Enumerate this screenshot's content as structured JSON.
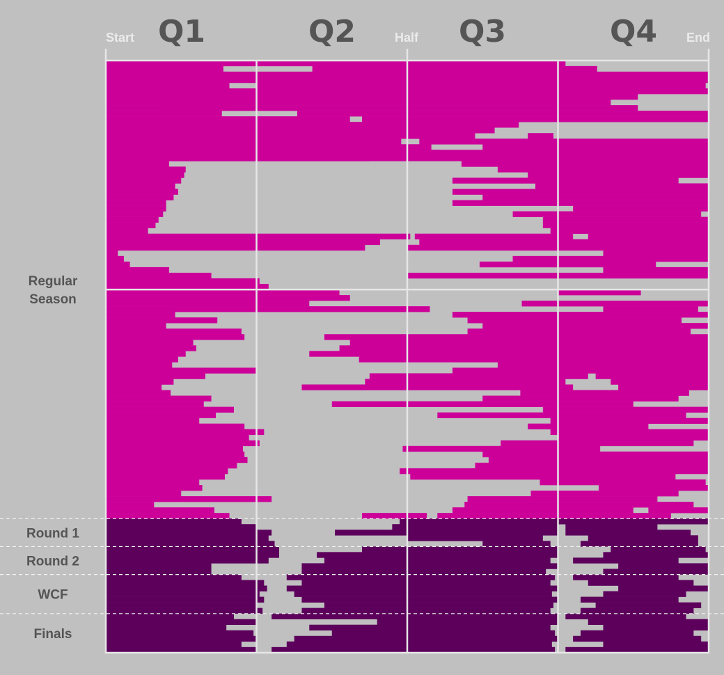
{
  "chart_data": {
    "type": "heatmap",
    "x_axis": {
      "quarter_labels": [
        "Q1",
        "Q2",
        "Q3",
        "Q4"
      ],
      "edge_labels": {
        "start": "Start",
        "half": "Half",
        "end": "End"
      },
      "range": [
        0,
        4
      ]
    },
    "colors": {
      "background": "#c0c0c0",
      "regular_season_bar": "#cc0099",
      "playoff_bar": "#5c005c",
      "grid": "#e6e6e6"
    },
    "sections": [
      {
        "label": "Regular Season",
        "lines": [
          "Regular",
          "Season"
        ],
        "games": 82,
        "color": "#cc0099"
      },
      {
        "label": "Round 1",
        "lines": [
          "Round 1"
        ],
        "games": 5,
        "color": "#5c005c"
      },
      {
        "label": "Round 2",
        "lines": [
          "Round 2"
        ],
        "games": 5,
        "color": "#5c005c"
      },
      {
        "label": "WCF",
        "lines": [
          "WCF"
        ],
        "games": 7,
        "color": "#5c005c"
      },
      {
        "label": "Finals",
        "lines": [
          "Finals"
        ],
        "games": 7,
        "color": "#5c005c"
      }
    ],
    "games": [
      [
        0,
        3.05
      ],
      [
        0,
        0.78,
        1.37,
        3.26
      ],
      [
        0,
        0.82,
        0.15,
        4.0
      ],
      [
        0,
        0.76,
        0.4,
        4.0
      ],
      [
        0,
        0.82,
        1.0,
        3.98
      ],
      [
        0,
        0.76,
        0.4,
        4.0
      ],
      [
        0,
        0.76,
        0.5,
        3.53
      ],
      [
        0,
        0.81,
        0.36,
        3.35
      ],
      [
        0,
        0.74,
        0.38,
        3.53
      ],
      [
        0,
        0.77,
        1.27,
        4.0
      ],
      [
        0,
        1.62,
        1.7,
        4.0
      ],
      [
        0,
        2.74
      ],
      [
        0,
        2.58
      ],
      [
        0,
        2.45,
        2.8,
        2.97
      ],
      [
        0,
        1.96,
        2.08,
        4.0
      ],
      [
        0,
        2.16,
        2.5,
        4.0
      ],
      [
        0,
        2.22,
        0.45,
        4.0
      ],
      [
        0,
        1.75,
        0.2,
        4.0
      ],
      [
        0,
        0.42,
        2.36,
        4.0
      ],
      [
        0,
        0.53,
        2.6,
        4.0
      ],
      [
        0,
        0.52,
        2.8,
        4.0
      ],
      [
        0,
        0.5,
        2.3,
        3.8
      ],
      [
        0,
        0.46,
        2.85,
        4.0
      ],
      [
        0,
        0.48,
        2.3,
        4.0
      ],
      [
        0,
        0.45,
        2.5,
        4.0
      ],
      [
        0,
        0.4,
        2.3,
        4.0
      ],
      [
        0,
        0.4,
        3.1,
        4.0
      ],
      [
        0,
        0.38,
        2.7,
        3.95
      ],
      [
        0,
        0.35,
        2.9,
        4.0
      ],
      [
        0,
        0.33,
        2.9,
        4.0
      ],
      [
        0,
        0.28,
        2.95,
        4.0
      ],
      [
        0,
        2.02,
        2.05,
        3.1,
        3.2,
        4.0
      ],
      [
        0,
        1.82,
        2.08,
        4.0
      ],
      [
        0,
        1.72,
        2.0,
        4.0
      ],
      [
        0,
        0.08,
        3.3,
        4.0
      ],
      [
        0,
        0.12,
        2.7,
        4.0
      ],
      [
        0,
        0.16,
        2.48,
        3.65
      ],
      [
        0,
        0.42,
        3.3,
        4.0
      ],
      [
        0,
        0.7,
        2.0,
        4.0
      ],
      [
        0,
        1.02,
        3.65
      ],
      [
        0,
        1.08,
        2.86
      ],
      [
        0,
        1.55,
        3.0,
        3.55
      ],
      [
        0,
        1.62,
        3.7
      ],
      [
        0,
        1.35,
        2.76,
        4.0
      ],
      [
        0,
        2.15,
        3.3,
        3.93
      ],
      [
        0,
        0.46,
        2.3,
        4.0
      ],
      [
        0,
        0.74,
        2.4,
        3.82
      ],
      [
        0,
        0.4,
        2.5,
        4.0
      ],
      [
        0,
        0.9,
        2.4,
        3.88
      ],
      [
        0,
        0.92,
        1.45,
        4.0
      ],
      [
        0,
        0.58,
        1.62,
        4.0
      ],
      [
        0,
        0.6,
        1.55,
        4.0
      ],
      [
        0,
        0.53,
        1.35,
        4.0
      ],
      [
        0,
        0.48,
        1.68,
        4.0
      ],
      [
        0,
        0.44,
        2.6,
        4.0
      ],
      [
        0,
        1.0,
        2.3,
        4.0
      ],
      [
        0,
        0.66,
        1.75,
        3.2,
        3.25,
        4.0
      ],
      [
        0,
        0.45,
        1.72,
        3.05,
        3.35,
        4.0
      ],
      [
        0,
        0.37,
        1.3,
        3.1,
        3.4,
        4.0
      ],
      [
        0,
        0.43,
        2.75,
        3.87
      ],
      [
        0,
        0.7,
        2.5,
        3.8
      ],
      [
        0,
        0.65,
        1.5,
        3.5
      ],
      [
        0,
        0.85,
        2.9,
        4.0
      ],
      [
        0,
        0.73,
        2.2,
        3.85
      ],
      [
        0,
        0.62,
        2.95,
        4.0
      ],
      [
        0,
        0.92,
        2.8,
        3.6
      ],
      [
        0,
        1.05,
        2.95,
        4.0
      ],
      [
        0,
        0.95,
        3.0,
        4.0
      ],
      [
        0,
        1.02,
        2.62,
        3.9
      ],
      [
        0,
        0.91,
        1.97,
        3.28
      ],
      [
        0,
        0.92,
        2.5,
        4.0
      ],
      [
        0,
        0.94,
        2.54,
        4.0
      ],
      [
        0,
        0.87,
        2.45,
        4.0
      ],
      [
        0,
        0.81,
        1.95,
        4.0
      ],
      [
        0,
        0.79,
        2.02,
        3.78
      ],
      [
        0,
        0.62,
        2.88,
        3.98
      ],
      [
        0,
        0.64,
        3.27,
        4.0
      ],
      [
        0,
        0.5,
        2.82,
        3.8
      ],
      [
        0,
        1.1,
        2.4,
        3.66
      ],
      [
        0,
        0.32,
        2.38,
        3.9
      ],
      [
        0,
        0.72,
        2.3,
        3.5,
        3.6,
        4.0
      ],
      [
        0,
        0.82,
        1.7,
        2.13,
        2.2,
        3.75
      ],
      [
        0,
        0.9,
        1.95,
        4.0
      ],
      [
        0,
        1.0,
        1.9,
        3.0,
        3.05,
        3.66
      ],
      [
        0,
        1.1,
        1.52,
        3.0,
        3.05,
        3.88
      ],
      [
        0,
        1.08,
        2.0,
        2.9,
        3.2,
        3.93
      ],
      [
        0,
        1.12,
        2.5,
        2.95,
        3.15,
        3.93
      ],
      [
        0,
        1.15,
        1.7,
        3.0,
        3.35,
        3.98
      ],
      [
        0,
        1.15,
        1.4,
        3.0,
        3.3,
        4.0
      ],
      [
        0,
        1.08,
        1.45,
        2.95,
        3.1,
        3.8
      ],
      [
        0,
        0.7,
        1.3,
        3.0,
        3.4,
        4.0
      ],
      [
        0,
        0.7,
        1.3,
        2.92,
        3.3,
        4.0
      ],
      [
        0,
        0.9,
        1.2,
        2.98,
        3.1,
        3.8
      ],
      [
        0,
        1.05,
        1.3,
        2.95,
        3.2,
        3.9
      ],
      [
        0,
        1.07,
        1.2,
        3.0,
        3.4,
        4.0
      ],
      [
        0,
        1.02,
        1.25,
        2.96,
        3.3,
        3.85
      ],
      [
        0,
        1.05,
        1.3,
        3.0,
        3.15,
        3.8
      ],
      [
        0,
        1.0,
        1.45,
        2.97,
        3.25,
        3.95
      ],
      [
        0,
        1.04,
        1.3,
        2.95,
        3.15,
        3.9
      ],
      [
        0,
        0.85,
        1.1,
        3.0,
        3.05,
        3.85
      ],
      [
        0,
        1.0,
        1.8,
        3.0,
        3.2,
        4.0
      ],
      [
        0,
        0.8,
        1.35,
        2.95,
        3.3,
        4.0
      ],
      [
        0,
        0.98,
        1.5,
        2.98,
        3.15,
        3.9
      ],
      [
        0,
        1.0,
        1.25,
        3.0,
        3.1,
        3.95
      ],
      [
        0,
        0.9,
        1.2,
        2.96,
        3.3,
        4.0
      ],
      [
        0,
        1.0,
        1.1,
        2.98,
        3.05,
        4.0
      ]
    ]
  }
}
